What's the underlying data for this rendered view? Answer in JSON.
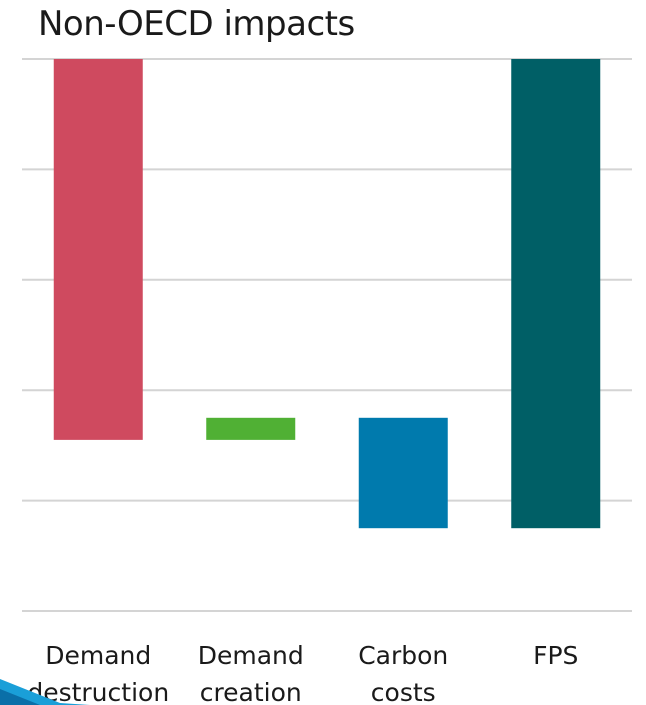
{
  "chart_data": {
    "type": "bar",
    "subtype": "waterfall",
    "title": "Non-OECD impacts",
    "xlabel": "",
    "ylabel": "",
    "categories": [
      [
        "Demand",
        "destruction"
      ],
      [
        "Demand",
        "creation"
      ],
      [
        "Carbon",
        "costs"
      ],
      [
        "FPS"
      ]
    ],
    "bars": [
      {
        "start": 0.0,
        "end": -3.45,
        "color": "#cf4a5f"
      },
      {
        "start": -3.45,
        "end": -3.25,
        "color": "#50b034"
      },
      {
        "start": -3.25,
        "end": -4.25,
        "color": "#007aad"
      },
      {
        "start": 0.0,
        "end": -4.25,
        "color": "#005f66"
      }
    ],
    "ylim": [
      -5,
      0
    ],
    "gridlines": [
      0,
      -1,
      -2,
      -3,
      -4,
      -5
    ],
    "grid": true,
    "legend": "none",
    "y_tick_labels": "none"
  }
}
